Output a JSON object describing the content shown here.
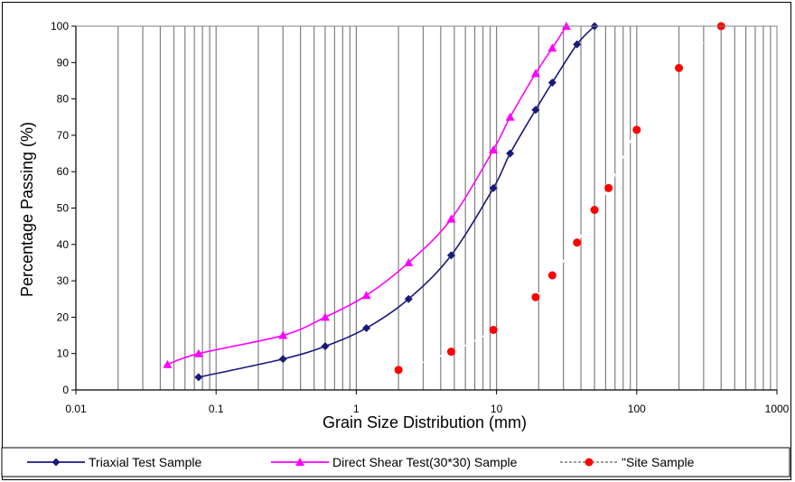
{
  "chart_data": {
    "type": "line",
    "xscale": "log",
    "xlim": [
      0.01,
      1000
    ],
    "ylim": [
      0,
      100
    ],
    "xlabel": "Grain Size Distribution (mm)",
    "ylabel": "Percentage Passing (%)",
    "grid": "vertical minor and major log gridlines",
    "legend_position": "bottom",
    "x_ticks": [
      "0.01",
      "0.1",
      "1",
      "10",
      "100",
      "1000"
    ],
    "y_ticks": [
      "0",
      "10",
      "20",
      "30",
      "40",
      "50",
      "60",
      "70",
      "80",
      "90",
      "100"
    ],
    "series": [
      {
        "name": "Triaxial Test Sample",
        "color": "#1a1a7a",
        "marker": "diamond",
        "line": "solid",
        "points": [
          [
            0.075,
            3.5
          ],
          [
            0.3,
            8.5
          ],
          [
            0.6,
            12
          ],
          [
            1.18,
            17
          ],
          [
            2.36,
            25
          ],
          [
            4.75,
            37
          ],
          [
            9.5,
            55.5
          ],
          [
            12.5,
            65
          ],
          [
            19,
            77
          ],
          [
            25,
            84.5
          ],
          [
            37.5,
            95
          ],
          [
            50,
            100
          ]
        ]
      },
      {
        "name": "Direct Shear Test(30*30) Sample",
        "color": "#ff00ff",
        "marker": "triangle",
        "line": "solid",
        "points": [
          [
            0.045,
            7
          ],
          [
            0.075,
            10
          ],
          [
            0.3,
            15
          ],
          [
            0.6,
            20
          ],
          [
            1.18,
            26
          ],
          [
            2.36,
            35
          ],
          [
            4.75,
            47
          ],
          [
            9.5,
            66
          ],
          [
            12.5,
            75
          ],
          [
            19,
            87
          ],
          [
            25,
            94
          ],
          [
            31.5,
            100
          ]
        ]
      },
      {
        "name": "\"Site Sample",
        "color": "#ff0000",
        "line_color": "#ffffff",
        "marker": "circle",
        "line": "dashed",
        "points": [
          [
            2,
            5.5
          ],
          [
            4.75,
            10.5
          ],
          [
            9.5,
            16.5
          ],
          [
            19,
            25.5
          ],
          [
            25,
            31.5
          ],
          [
            37.5,
            40.5
          ],
          [
            50,
            49.5
          ],
          [
            63,
            55.5
          ],
          [
            100,
            71.5
          ],
          [
            200,
            88.5
          ],
          [
            400,
            100
          ]
        ]
      }
    ]
  }
}
